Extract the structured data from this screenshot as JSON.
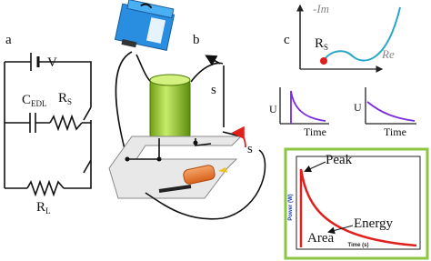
{
  "panel_a": {
    "label": "a",
    "battery": "V",
    "capacitor": {
      "main": "C",
      "sub": "EDL"
    },
    "resistor_s": {
      "main": "R",
      "sub": "S"
    },
    "resistor_l": {
      "main": "R",
      "sub": "L"
    }
  },
  "panel_b": {
    "label": "b",
    "switches": [
      "s",
      "s"
    ]
  },
  "panel_c": {
    "label": "c",
    "nyquist": {
      "y_label": "-Im",
      "x_label": "Re",
      "point": {
        "main": "R",
        "sub": "S"
      }
    },
    "plots": [
      {
        "y_label": "U",
        "x_label": "Time"
      },
      {
        "y_label": "U",
        "x_label": "Time"
      }
    ],
    "power": {
      "y_label": "Power (W)",
      "x_label": "Time (s)",
      "annotations": [
        "Peak",
        "Energy",
        "Area"
      ]
    }
  }
}
